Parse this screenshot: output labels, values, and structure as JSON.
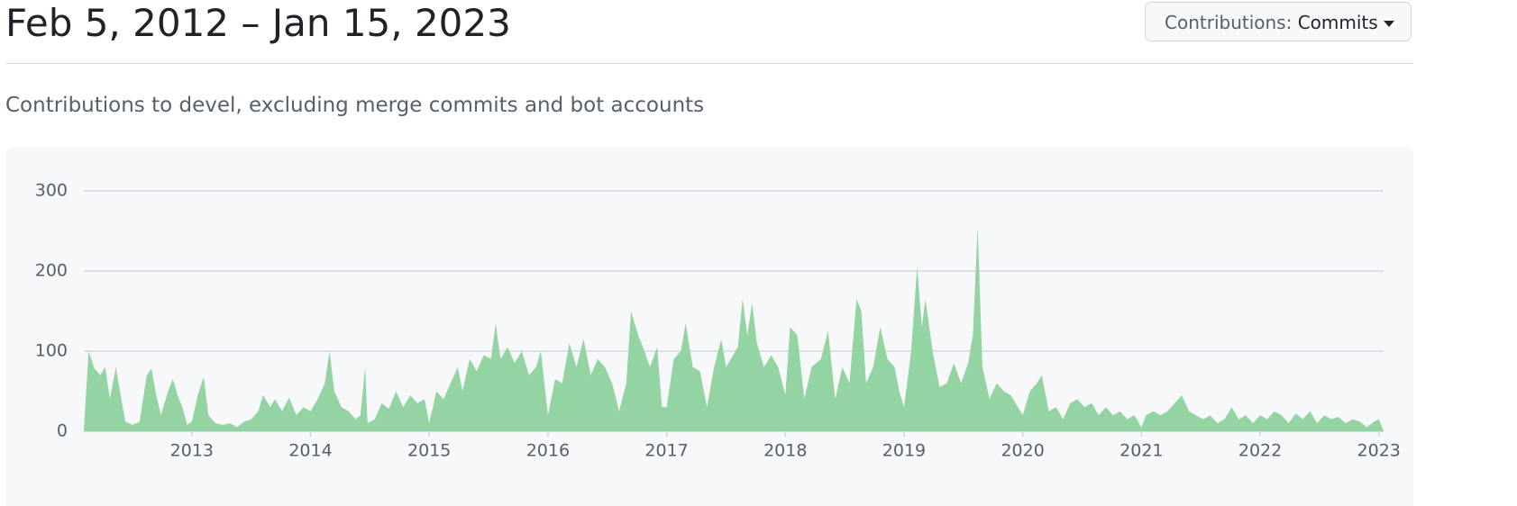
{
  "header": {
    "title": "Feb 5, 2012 – Jan 15, 2023",
    "dropdown_label": "Contributions:",
    "dropdown_value": "Commits"
  },
  "subtitle": "Contributions to devel, excluding merge commits and bot accounts",
  "chart_data": {
    "type": "area",
    "color": "#94d3a2",
    "grid": true,
    "xlim": [
      2012.09,
      2023.04
    ],
    "xticks": [
      2013,
      2014,
      2015,
      2016,
      2017,
      2018,
      2019,
      2020,
      2021,
      2022,
      2023
    ],
    "ylim": [
      0,
      300
    ],
    "yticks": [
      0,
      100,
      200,
      300
    ],
    "x": [
      2012.09,
      2012.13,
      2012.18,
      2012.23,
      2012.27,
      2012.31,
      2012.36,
      2012.4,
      2012.44,
      2012.5,
      2012.56,
      2012.62,
      2012.66,
      2012.7,
      2012.74,
      2012.8,
      2012.84,
      2012.88,
      2012.92,
      2012.96,
      2013,
      2013.05,
      2013.1,
      2013.14,
      2013.2,
      2013.26,
      2013.32,
      2013.38,
      2013.44,
      2013.5,
      2013.56,
      2013.6,
      2013.66,
      2013.7,
      2013.76,
      2013.82,
      2013.88,
      2013.94,
      2014,
      2014.06,
      2014.12,
      2014.16,
      2014.2,
      2014.26,
      2014.32,
      2014.38,
      2014.42,
      2014.46,
      2014.48,
      2014.54,
      2014.6,
      2014.66,
      2014.72,
      2014.78,
      2014.84,
      2014.9,
      2014.96,
      2015,
      2015.06,
      2015.12,
      2015.18,
      2015.24,
      2015.28,
      2015.34,
      2015.4,
      2015.46,
      2015.52,
      2015.56,
      2015.6,
      2015.66,
      2015.72,
      2015.78,
      2015.84,
      2015.9,
      2015.94,
      2016,
      2016.06,
      2016.12,
      2016.18,
      2016.24,
      2016.3,
      2016.36,
      2016.42,
      2016.48,
      2016.54,
      2016.6,
      2016.66,
      2016.7,
      2016.76,
      2016.8,
      2016.86,
      2016.92,
      2016.96,
      2017,
      2017.06,
      2017.12,
      2017.16,
      2017.22,
      2017.28,
      2017.34,
      2017.4,
      2017.46,
      2017.5,
      2017.56,
      2017.6,
      2017.64,
      2017.68,
      2017.72,
      2017.76,
      2017.82,
      2017.88,
      2017.94,
      2018,
      2018.04,
      2018.1,
      2018.16,
      2018.22,
      2018.3,
      2018.36,
      2018.42,
      2018.48,
      2018.54,
      2018.6,
      2018.64,
      2018.68,
      2018.74,
      2018.8,
      2018.86,
      2018.92,
      2018.96,
      2019,
      2019.06,
      2019.11,
      2019.15,
      2019.18,
      2019.24,
      2019.3,
      2019.36,
      2019.42,
      2019.48,
      2019.54,
      2019.58,
      2019.62,
      2019.66,
      2019.72,
      2019.78,
      2019.84,
      2019.9,
      2019.96,
      2020,
      2020.06,
      2020.12,
      2020.16,
      2020.22,
      2020.28,
      2020.34,
      2020.4,
      2020.46,
      2020.52,
      2020.58,
      2020.64,
      2020.7,
      2020.76,
      2020.82,
      2020.88,
      2020.94,
      2021,
      2021.04,
      2021.1,
      2021.16,
      2021.22,
      2021.28,
      2021.34,
      2021.4,
      2021.46,
      2021.52,
      2021.58,
      2021.64,
      2021.7,
      2021.76,
      2021.82,
      2021.88,
      2021.94,
      2022,
      2022.06,
      2022.12,
      2022.18,
      2022.24,
      2022.3,
      2022.36,
      2022.42,
      2022.48,
      2022.54,
      2022.6,
      2022.66,
      2022.72,
      2022.78,
      2022.84,
      2022.9,
      2022.96,
      2023,
      2023.04
    ],
    "values": [
      0,
      100,
      78,
      70,
      80,
      40,
      80,
      45,
      12,
      8,
      12,
      70,
      78,
      45,
      20,
      50,
      65,
      45,
      30,
      8,
      12,
      45,
      68,
      20,
      10,
      8,
      10,
      5,
      12,
      15,
      25,
      45,
      30,
      40,
      25,
      42,
      20,
      30,
      25,
      40,
      60,
      100,
      50,
      30,
      25,
      15,
      20,
      80,
      10,
      15,
      35,
      28,
      50,
      30,
      45,
      35,
      40,
      10,
      50,
      40,
      60,
      80,
      50,
      90,
      75,
      95,
      90,
      135,
      90,
      105,
      85,
      100,
      70,
      80,
      100,
      20,
      65,
      60,
      110,
      80,
      115,
      70,
      90,
      80,
      60,
      25,
      60,
      150,
      120,
      105,
      80,
      105,
      30,
      30,
      90,
      100,
      135,
      80,
      75,
      30,
      80,
      115,
      80,
      95,
      105,
      165,
      120,
      160,
      110,
      80,
      95,
      80,
      45,
      130,
      120,
      40,
      80,
      90,
      125,
      40,
      80,
      60,
      165,
      150,
      60,
      80,
      130,
      90,
      80,
      50,
      30,
      100,
      205,
      130,
      165,
      100,
      55,
      60,
      85,
      60,
      85,
      120,
      255,
      80,
      40,
      60,
      50,
      45,
      30,
      20,
      50,
      60,
      70,
      25,
      30,
      15,
      35,
      40,
      30,
      35,
      20,
      30,
      20,
      25,
      15,
      20,
      5,
      20,
      25,
      20,
      25,
      35,
      45,
      25,
      20,
      15,
      20,
      10,
      15,
      30,
      15,
      20,
      10,
      20,
      15,
      25,
      20,
      10,
      22,
      15,
      25,
      10,
      20,
      15,
      18,
      10,
      15,
      12,
      5,
      12,
      15,
      0
    ]
  }
}
